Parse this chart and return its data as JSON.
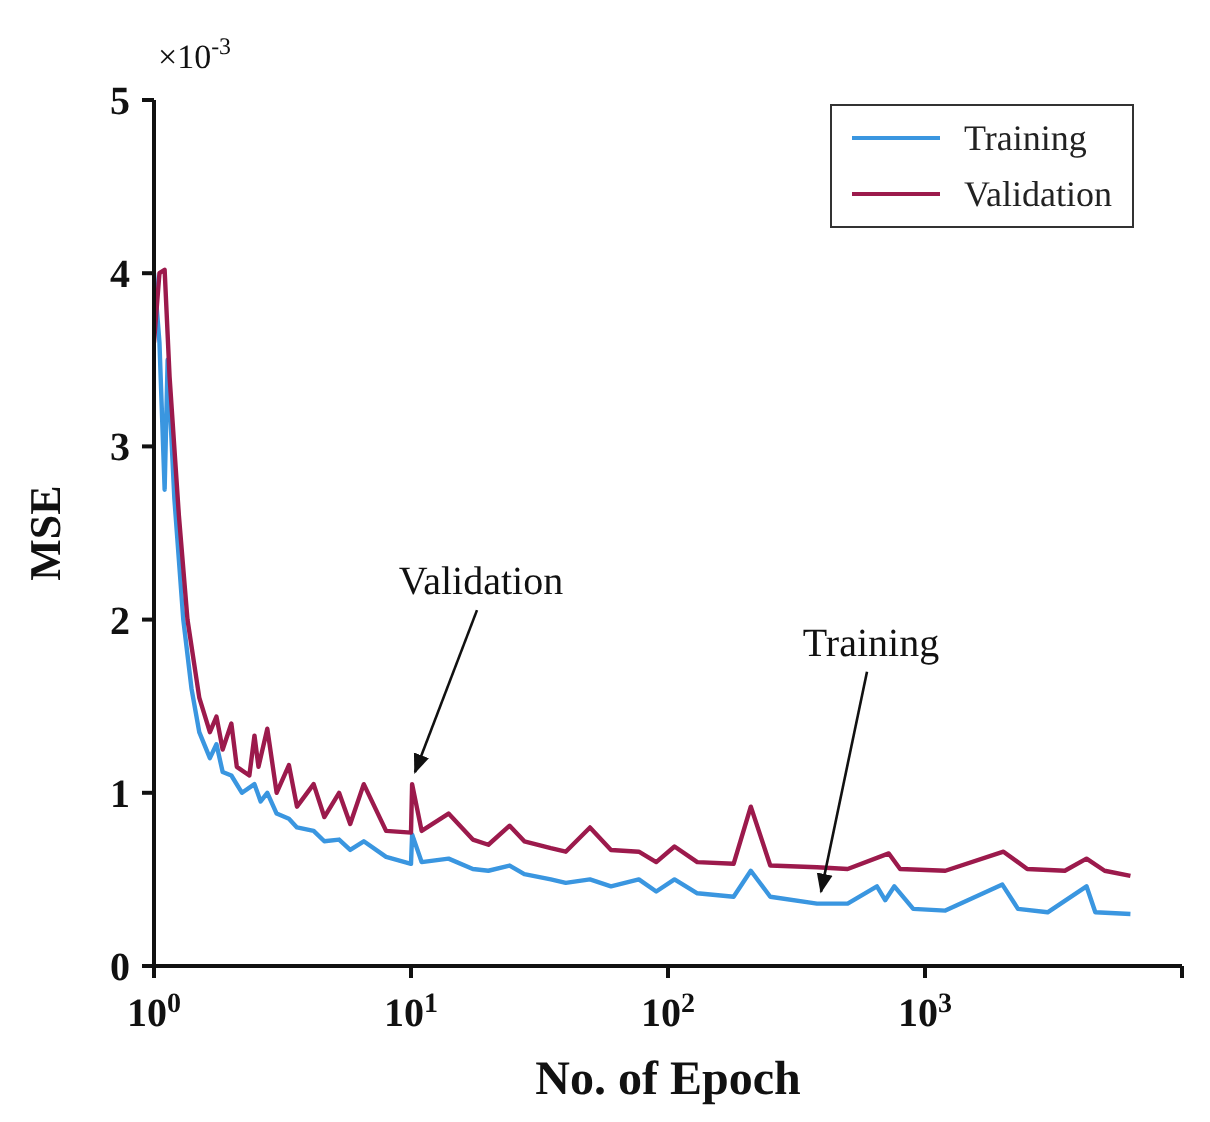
{
  "chart_data": {
    "type": "line",
    "xlabel": "No. of Epoch",
    "ylabel": "MSE",
    "log": "x",
    "xlim": [
      1,
      10000
    ],
    "ylim": [
      0,
      5
    ],
    "xticks": [
      {
        "value": 1,
        "label": "10$^{0}$"
      },
      {
        "value": 10,
        "label": "10$^{1}$"
      },
      {
        "value": 100,
        "label": "10$^{2}$"
      },
      {
        "value": 1000,
        "label": "10$^{3}$"
      },
      {
        "value": 10000,
        "label": null
      }
    ],
    "yticks": [
      0,
      1,
      2,
      3,
      4,
      5
    ],
    "grid": false,
    "legend": "top right",
    "marker": "none",
    "line_style": "solid",
    "annotations": [
      "×10$^{-3}$",
      {
        "text": "Validation",
        "x": 10,
        "y": 1.05
      },
      {
        "text": "Training",
        "x": 380,
        "y": 0.36
      }
    ],
    "series": [
      {
        "name": "Training",
        "color": "#3a96e0",
        "type": "line",
        "x": [
          1,
          1.05,
          1.1,
          1.13,
          1.2,
          1.3,
          1.4,
          1.5,
          1.65,
          1.75,
          1.85,
          2,
          2.2,
          2.46,
          2.6,
          2.76,
          3,
          3.35,
          3.6,
          4.18,
          4.6,
          5.25,
          5.8,
          6.55,
          8,
          10,
          10.1,
          11,
          14,
          17.4,
          20,
          24.2,
          27.6,
          35,
          40,
          49.7,
          60,
          77,
          90,
          106,
          130,
          180,
          210,
          250,
          380,
          500,
          650,
          700,
          760,
          900,
          1200,
          2000,
          2300,
          3000,
          4250,
          4600,
          6300
        ],
        "values": [
          4.0,
          3.6,
          2.75,
          3.5,
          2.7,
          2.0,
          1.6,
          1.35,
          1.2,
          1.28,
          1.12,
          1.1,
          1.0,
          1.05,
          0.95,
          1.0,
          0.88,
          0.85,
          0.8,
          0.78,
          0.72,
          0.73,
          0.67,
          0.72,
          0.63,
          0.59,
          0.76,
          0.6,
          0.62,
          0.56,
          0.55,
          0.58,
          0.53,
          0.5,
          0.48,
          0.5,
          0.46,
          0.5,
          0.43,
          0.5,
          0.42,
          0.4,
          0.55,
          0.4,
          0.36,
          0.36,
          0.46,
          0.38,
          0.46,
          0.33,
          0.32,
          0.47,
          0.33,
          0.31,
          0.46,
          0.31,
          0.3
        ]
      },
      {
        "name": "Validation",
        "color": "#9c1a4c",
        "type": "line",
        "x": [
          1,
          1.05,
          1.1,
          1.15,
          1.25,
          1.35,
          1.5,
          1.65,
          1.75,
          1.85,
          2,
          2.1,
          2.35,
          2.46,
          2.55,
          2.76,
          3,
          3.35,
          3.6,
          4.18,
          4.6,
          5.25,
          5.8,
          6.55,
          8,
          10,
          10.1,
          11,
          14,
          17.4,
          20,
          24.2,
          27.6,
          35,
          40,
          49.7,
          60,
          77,
          90,
          106,
          130,
          180,
          210,
          250,
          380,
          500,
          723,
          800,
          1200,
          2020,
          2500,
          3500,
          4250,
          5000,
          6300
        ],
        "values": [
          3.6,
          4.0,
          4.02,
          3.4,
          2.6,
          2.0,
          1.55,
          1.35,
          1.44,
          1.25,
          1.4,
          1.15,
          1.1,
          1.33,
          1.15,
          1.37,
          1.0,
          1.16,
          0.92,
          1.05,
          0.86,
          1.0,
          0.82,
          1.05,
          0.78,
          0.77,
          1.05,
          0.78,
          0.88,
          0.73,
          0.7,
          0.81,
          0.72,
          0.68,
          0.66,
          0.8,
          0.67,
          0.66,
          0.6,
          0.69,
          0.6,
          0.59,
          0.92,
          0.58,
          0.57,
          0.56,
          0.65,
          0.56,
          0.55,
          0.66,
          0.56,
          0.55,
          0.62,
          0.55,
          0.52
        ]
      }
    ]
  }
}
